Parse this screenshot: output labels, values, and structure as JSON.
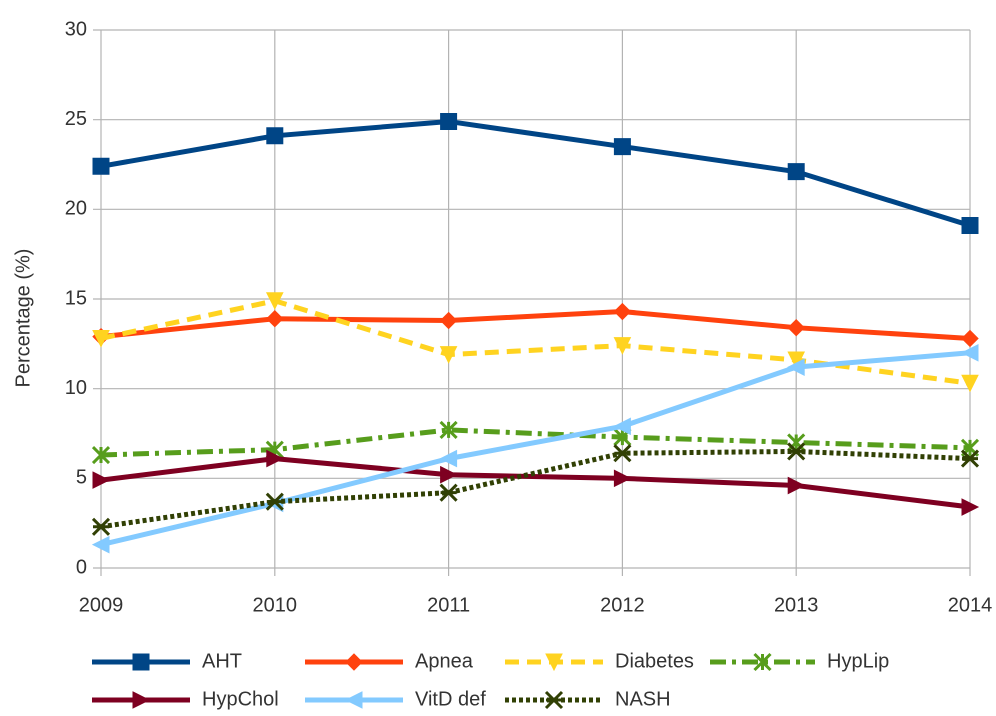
{
  "chart_data": {
    "type": "line",
    "y_label": "Percentage (%)",
    "x": [
      2009,
      2010,
      2011,
      2012,
      2013,
      2014
    ],
    "xlim": [
      2009,
      2014
    ],
    "xticks": [
      2009,
      2010,
      2011,
      2012,
      2013,
      2014
    ],
    "ylim": [
      0,
      30
    ],
    "yticks": [
      0,
      5,
      10,
      15,
      20,
      25,
      30
    ],
    "grid": true,
    "legend": "bottom",
    "series": [
      {
        "name": "AHT",
        "color": "#004586",
        "dash": "solid",
        "marker": "square",
        "values": [
          22.4,
          24.1,
          24.9,
          23.5,
          22.1,
          19.1
        ]
      },
      {
        "name": "Apnea",
        "color": "#ff420e",
        "dash": "solid",
        "marker": "diamond",
        "values": [
          12.9,
          13.9,
          13.8,
          14.3,
          13.4,
          12.8
        ]
      },
      {
        "name": "Diabetes",
        "color": "#ffd320",
        "dash": "dashed",
        "marker": "triangle-down",
        "values": [
          12.8,
          14.9,
          11.9,
          12.4,
          11.6,
          10.3
        ]
      },
      {
        "name": "HypLip",
        "color": "#579d1c",
        "dash": "dashdot",
        "marker": "x",
        "values": [
          6.3,
          6.6,
          7.7,
          7.3,
          7.0,
          6.7
        ]
      },
      {
        "name": "HypChol",
        "color": "#7e0021",
        "dash": "solid",
        "marker": "triangle-right",
        "values": [
          4.9,
          6.1,
          5.2,
          5.0,
          4.6,
          3.4
        ]
      },
      {
        "name": "VitD def",
        "color": "#83caff",
        "dash": "solid",
        "marker": "triangle-left",
        "values": [
          1.3,
          3.6,
          6.1,
          7.9,
          11.2,
          12.0
        ]
      },
      {
        "name": "NASH",
        "color": "#314004",
        "dash": "dotted",
        "marker": "star",
        "values": [
          2.3,
          3.7,
          4.2,
          6.4,
          6.5,
          6.1
        ]
      }
    ]
  }
}
